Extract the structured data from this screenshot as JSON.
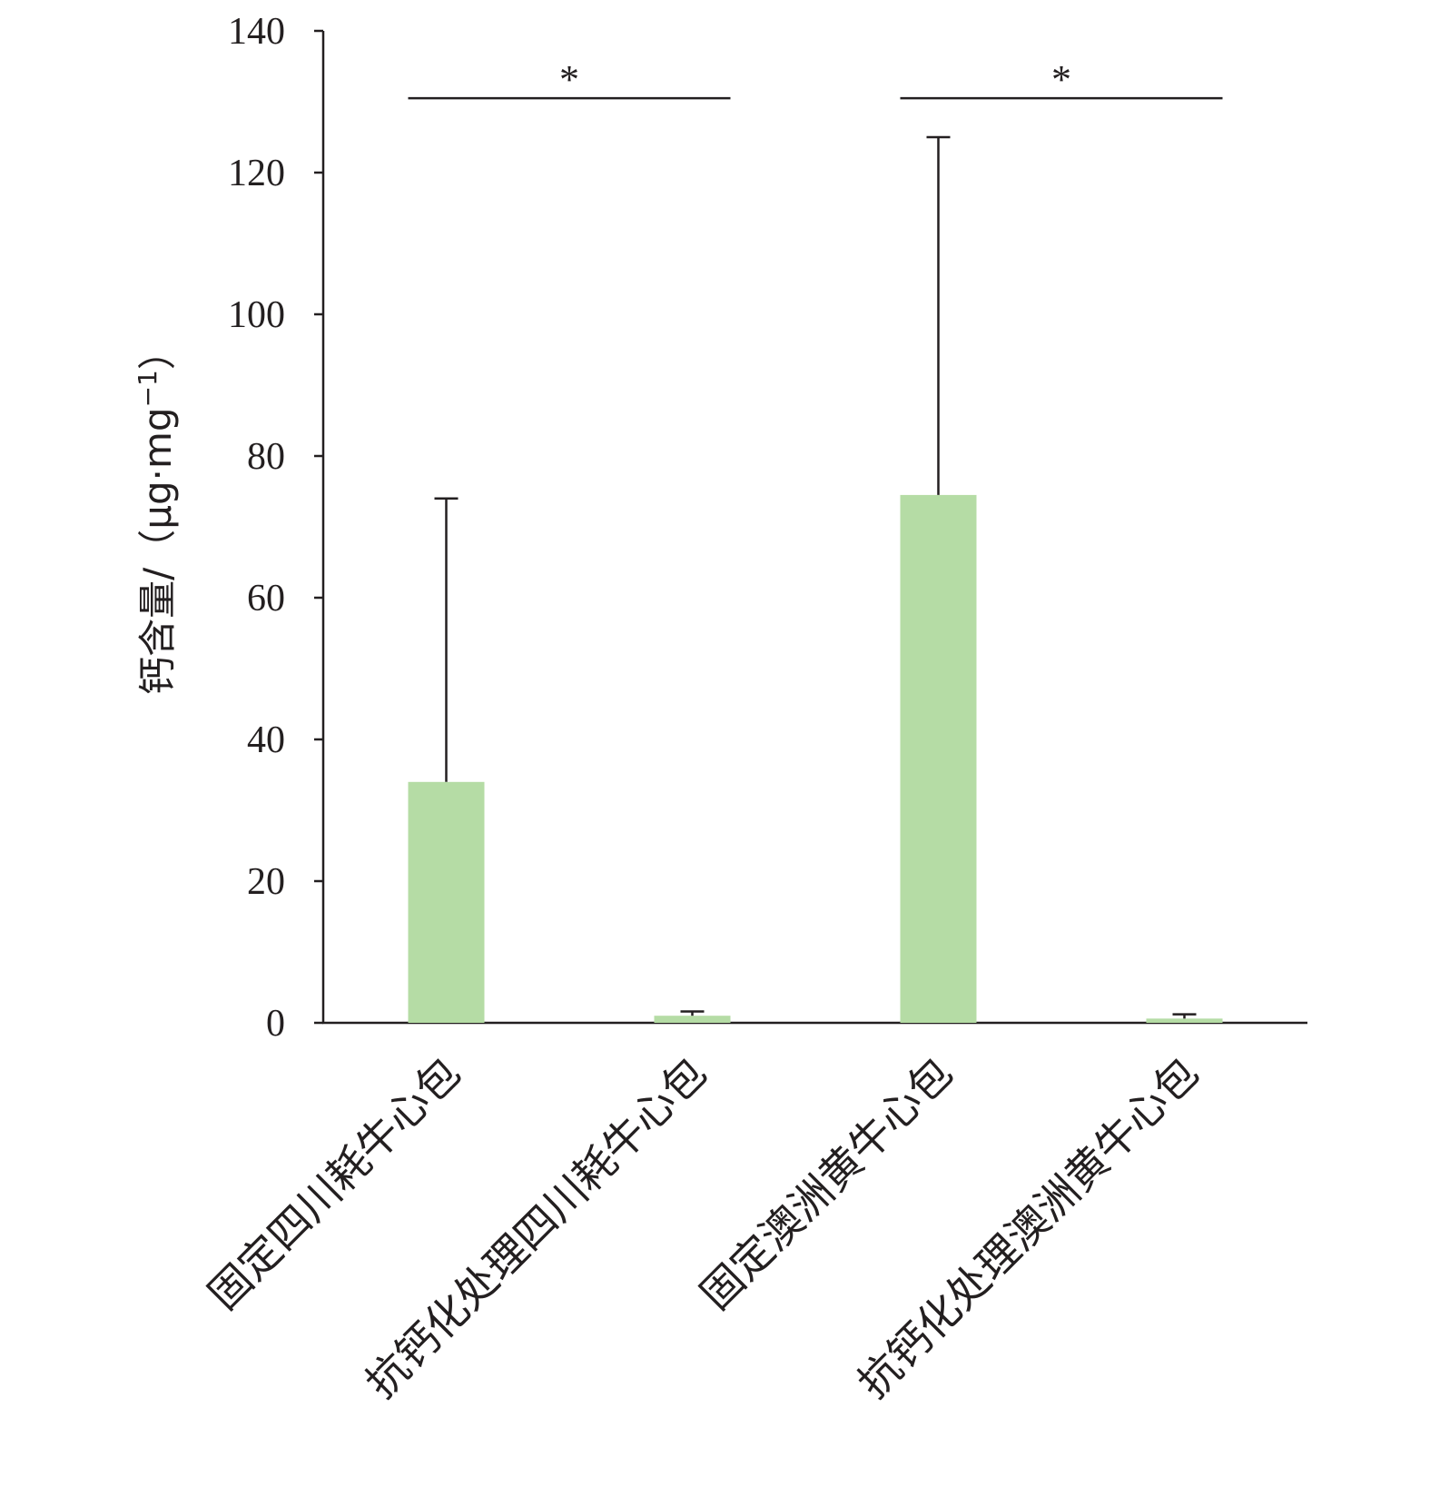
{
  "chart_data": {
    "type": "bar",
    "categories": [
      "固定四川耗牛心包",
      "抗钙化处理四川耗牛心包",
      "固定澳洲黄牛心包",
      "抗钙化处理澳洲黄牛心包"
    ],
    "values": [
      34,
      1,
      74.5,
      0.6
    ],
    "error_upper": [
      74,
      1.6,
      125,
      1.2
    ],
    "ylabel": "钙含量/（μg·mg−1）",
    "ylabel_main": "钙含量/（μg·mg",
    "ylabel_sup": "−1",
    "ylabel_close": "）",
    "ylim": [
      0,
      140
    ],
    "yticks": [
      0,
      20,
      40,
      60,
      80,
      100,
      120,
      140
    ],
    "grid": false,
    "bar_color": "#b5dca5",
    "significance": [
      {
        "from": 0,
        "to": 1,
        "label": "*",
        "level": 130.5
      },
      {
        "from": 2,
        "to": 3,
        "label": "*",
        "level": 130.5
      }
    ]
  }
}
